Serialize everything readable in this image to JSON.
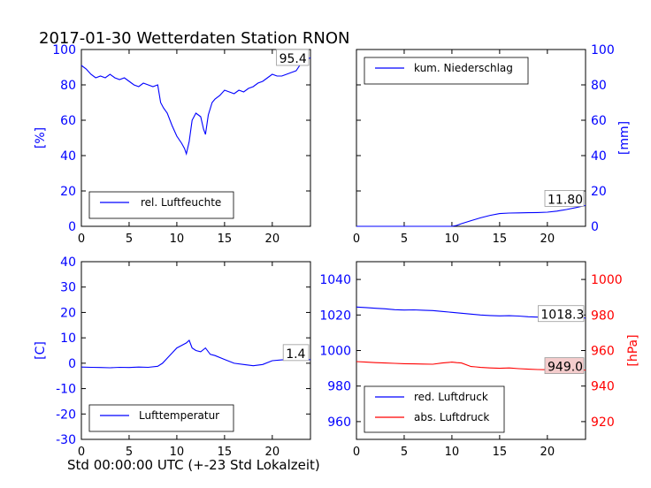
{
  "title": "2017-01-30 Wetterdaten Station RNON",
  "footer_xlabel": "Std 00:00:00 UTC (+-23 Std Lokalzeit)",
  "colors": {
    "blue": "#0000ff",
    "red": "#ff0000",
    "black": "#000000",
    "box_fill": "#ffffff",
    "box_fill_red": "#f4cccc"
  },
  "chart_data": [
    {
      "id": "humidity",
      "type": "line",
      "x_range": [
        0,
        24
      ],
      "x_ticks": [
        0,
        5,
        10,
        15,
        20
      ],
      "y_range": [
        0,
        100
      ],
      "y_ticks": [
        0,
        20,
        40,
        60,
        80,
        100
      ],
      "ylabel": "[%]",
      "ylabel_color": "#0000ff",
      "y_side": "left",
      "legend": "bottom-center",
      "last_value_label": "95.4",
      "series": [
        {
          "name": "rel. Luftfeuchte",
          "color": "#0000ff",
          "x": [
            0,
            0.5,
            1,
            1.5,
            2,
            2.5,
            3,
            3.5,
            4,
            4.5,
            5,
            5.5,
            6,
            6.5,
            7,
            7.5,
            8,
            8.3,
            8.6,
            9,
            9.5,
            10,
            10.5,
            10.8,
            11,
            11.3,
            11.6,
            12,
            12.5,
            12.8,
            13,
            13.3,
            13.7,
            14,
            14.5,
            15,
            15.5,
            16,
            16.5,
            17,
            17.5,
            18,
            18.5,
            19,
            19.5,
            20,
            20.5,
            21,
            21.5,
            22,
            22.5,
            23,
            23.5,
            24
          ],
          "y": [
            91,
            89,
            86,
            84,
            85,
            84,
            86,
            84,
            83,
            84,
            82,
            80,
            79,
            81,
            80,
            79,
            80,
            70,
            67,
            64,
            57,
            51,
            47,
            44,
            41,
            48,
            60,
            64,
            62,
            55,
            52,
            63,
            70,
            72,
            74,
            77,
            76,
            75,
            77,
            76,
            78,
            79,
            81,
            82,
            84,
            86,
            85,
            85,
            86,
            87,
            88,
            92,
            94,
            95.4
          ]
        }
      ]
    },
    {
      "id": "precipitation",
      "type": "line",
      "x_range": [
        0,
        24
      ],
      "x_ticks": [
        0,
        5,
        10,
        15,
        20
      ],
      "y_range": [
        0,
        100
      ],
      "y_ticks": [
        0,
        20,
        40,
        60,
        80,
        100
      ],
      "ylabel": "[mm]",
      "ylabel_color": "#0000ff",
      "y_side": "right",
      "legend": "top-left",
      "last_value_label": "11.80",
      "series": [
        {
          "name": "kum. Niederschlag",
          "color": "#0000ff",
          "x": [
            0,
            2,
            4,
            6,
            8,
            10,
            10.5,
            11,
            12,
            13,
            14,
            15,
            16,
            17,
            18,
            19,
            20,
            21,
            22,
            23,
            24
          ],
          "y": [
            0,
            0,
            0,
            0,
            0,
            0,
            0.5,
            1.5,
            3.2,
            4.8,
            6.2,
            7.2,
            7.5,
            7.6,
            7.7,
            7.8,
            8.0,
            8.6,
            9.5,
            10.6,
            11.8
          ]
        }
      ]
    },
    {
      "id": "temperature",
      "type": "line",
      "x_range": [
        0,
        24
      ],
      "x_ticks": [
        0,
        5,
        10,
        15,
        20
      ],
      "y_range": [
        -30,
        40
      ],
      "y_ticks": [
        -30,
        -20,
        -10,
        0,
        10,
        20,
        30,
        40
      ],
      "ylabel": "[C]",
      "ylabel_color": "#0000ff",
      "y_side": "left",
      "legend": "bottom-center",
      "last_value_label": "1.4",
      "series": [
        {
          "name": "Lufttemperatur",
          "color": "#0000ff",
          "x": [
            0,
            1,
            2,
            3,
            4,
            5,
            6,
            7,
            8,
            8.5,
            9,
            9.5,
            10,
            10.5,
            11,
            11.3,
            11.6,
            12,
            12.5,
            13,
            13.5,
            14,
            15,
            16,
            17,
            18,
            19,
            20,
            21,
            22,
            23,
            24
          ],
          "y": [
            -1.5,
            -1.6,
            -1.7,
            -1.8,
            -1.6,
            -1.7,
            -1.5,
            -1.6,
            -1.2,
            0,
            2,
            4,
            6,
            7,
            8,
            9,
            6,
            5,
            4.5,
            6,
            3.5,
            3,
            1.5,
            0,
            -0.5,
            -1,
            -0.5,
            1,
            1.3,
            1.4,
            1.4,
            1.4
          ]
        }
      ]
    },
    {
      "id": "pressure",
      "type": "line",
      "x_range": [
        0,
        24
      ],
      "x_ticks": [
        0,
        5,
        10,
        15,
        20
      ],
      "y_range": [
        950,
        1050
      ],
      "y_ticks": [
        960,
        980,
        1000,
        1020,
        1040
      ],
      "y2_range": [
        910,
        1010
      ],
      "y2_ticks": [
        920,
        940,
        960,
        980,
        1000
      ],
      "y2label": "[hPa]",
      "y2label_color": "#ff0000",
      "legend": "bottom-left",
      "series": [
        {
          "name": "red. Luftdruck",
          "color": "#0000ff",
          "axis": "left",
          "last_value_label": "1018.3",
          "x": [
            0,
            1,
            2,
            3,
            4,
            5,
            6,
            7,
            8,
            9,
            10,
            11,
            12,
            13,
            14,
            15,
            16,
            17,
            18,
            19,
            20,
            21,
            22,
            23,
            24
          ],
          "y": [
            1024.5,
            1024.2,
            1023.8,
            1023.5,
            1023.0,
            1022.8,
            1022.9,
            1022.7,
            1022.5,
            1022.0,
            1021.5,
            1021.0,
            1020.5,
            1020.0,
            1019.7,
            1019.5,
            1019.6,
            1019.4,
            1019.0,
            1018.8,
            1018.6,
            1018.5,
            1018.4,
            1018.3,
            1018.3
          ]
        },
        {
          "name": "abs. Luftdruck",
          "color": "#ff0000",
          "axis": "right",
          "last_value_label": "949.0",
          "x": [
            0,
            1,
            2,
            3,
            4,
            5,
            6,
            7,
            8,
            9,
            10,
            10.5,
            11,
            12,
            12.5,
            13,
            14,
            15,
            16,
            17,
            18,
            19,
            20,
            21,
            22,
            23,
            24
          ],
          "y": [
            953.8,
            953.5,
            953.2,
            953.0,
            952.8,
            952.6,
            952.5,
            952.4,
            952.3,
            953.0,
            953.5,
            953.2,
            953.0,
            951.0,
            950.8,
            950.5,
            950.2,
            950.0,
            950.2,
            949.8,
            949.5,
            949.3,
            949.2,
            949.1,
            949.0,
            949.0,
            949.0
          ]
        }
      ]
    }
  ]
}
